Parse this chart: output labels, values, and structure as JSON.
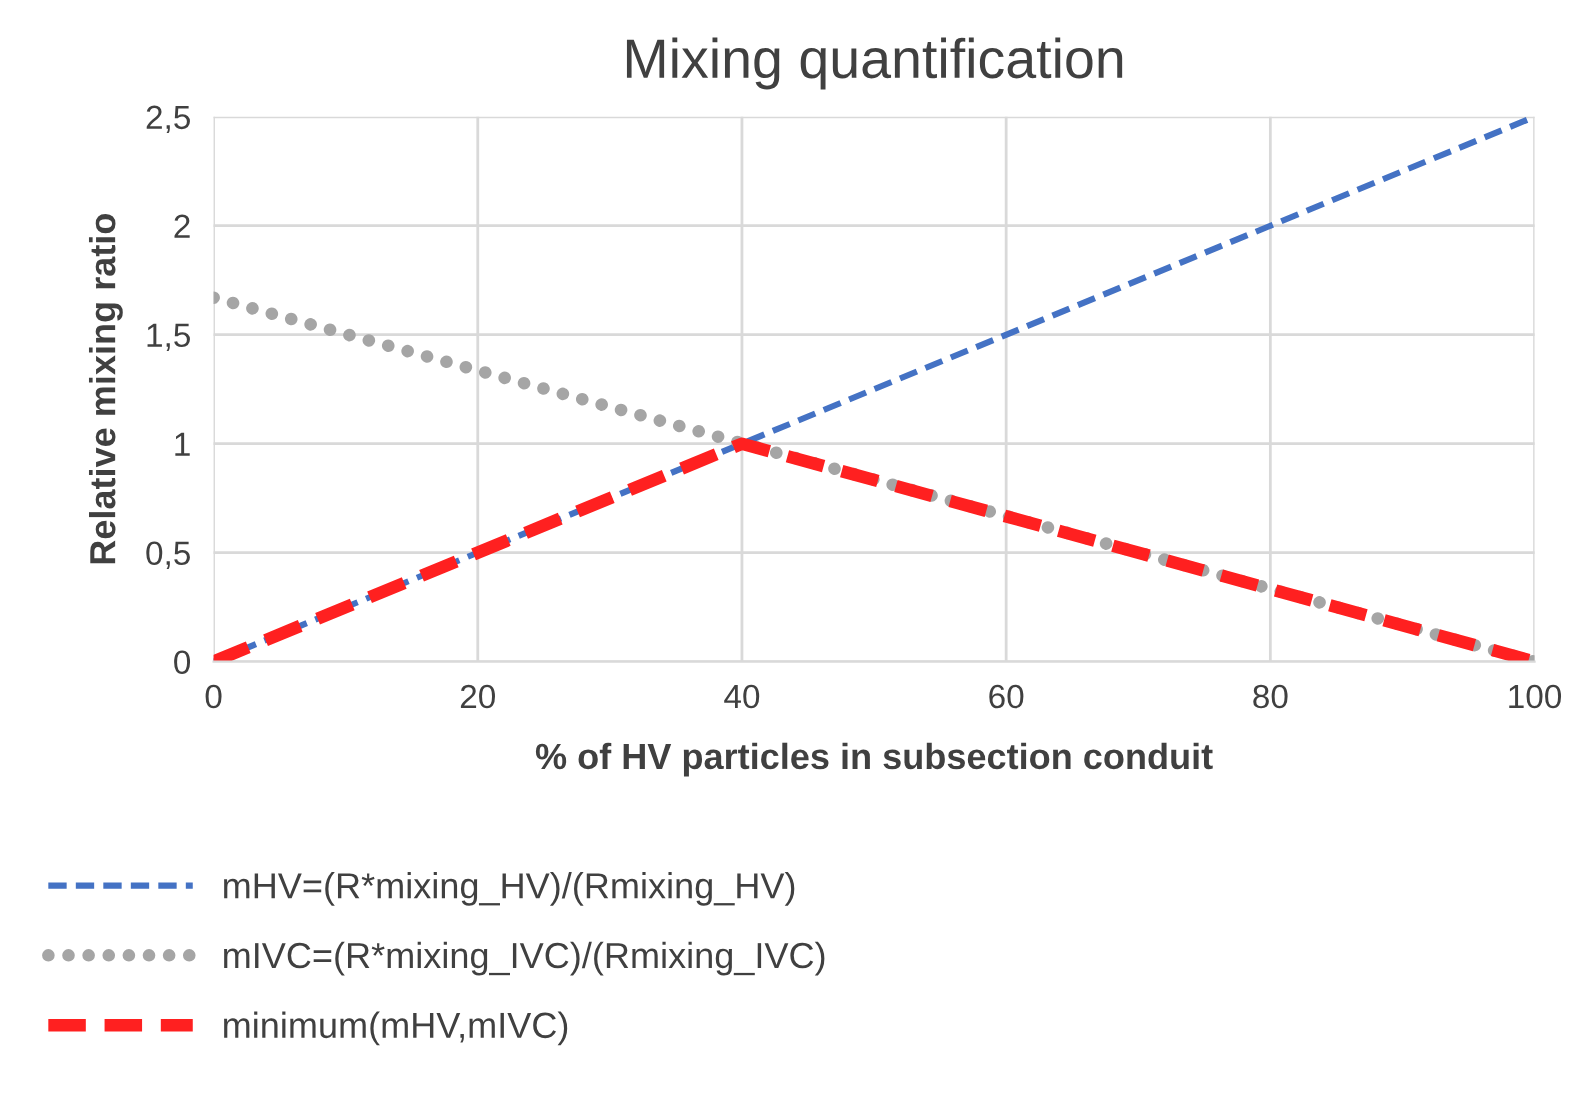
{
  "chart_data": {
    "type": "line",
    "title": "Mixing quantification",
    "xlabel": "% of HV particles in subsection conduit",
    "ylabel": "Relative mixing ratio",
    "series": [
      {
        "name": "mHV=(R*mixing_HV)/(Rmixing_HV)",
        "color": "#4472c4",
        "x": [
          0,
          100
        ],
        "values": [
          0,
          2.5
        ],
        "line_style": "dashed"
      },
      {
        "name": "mIVC=(R*mixing_IVC)/(Rmixing_IVC)",
        "color": "#a5a5a5",
        "x": [
          0,
          100
        ],
        "values": [
          1.67,
          0
        ],
        "line_style": "dotted"
      },
      {
        "name": "minimum(mHV,mIVC)",
        "color": "#ff2020",
        "x": [
          0,
          40,
          100
        ],
        "values": [
          0,
          1,
          0
        ],
        "line_style": "dashed"
      }
    ],
    "xlim": [
      0,
      100
    ],
    "xticks": [
      0,
      20,
      40,
      60,
      80,
      100
    ],
    "ylim": [
      0,
      2.5
    ],
    "yticks": [
      0,
      {
        "value": 0.5,
        "label": "0,5"
      },
      1,
      {
        "value": 1.5,
        "label": "1,5"
      },
      2,
      {
        "value": 2.5,
        "label": "2,5"
      }
    ],
    "grid": true,
    "legend": "bottom",
    "marker": "none"
  }
}
